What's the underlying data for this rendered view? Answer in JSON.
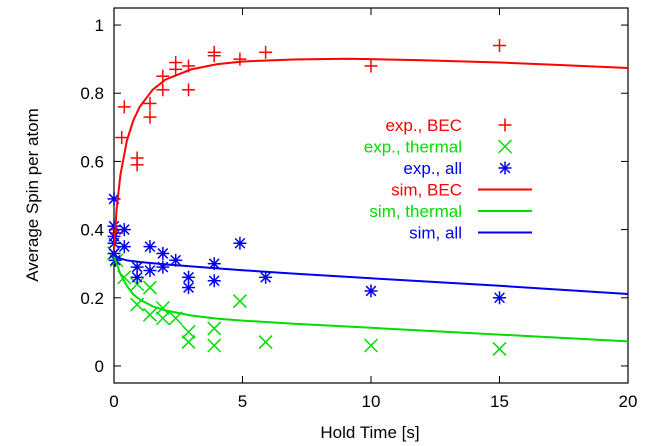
{
  "chart_data": {
    "type": "scatter",
    "xlabel": "Hold Time [s]",
    "ylabel": "Average Spin per atom",
    "xlim": [
      0,
      20
    ],
    "ylim": [
      -0.05,
      1.05
    ],
    "x_ticks": [
      0,
      5,
      10,
      15,
      20
    ],
    "y_ticks": [
      0,
      0.2,
      0.4,
      0.6,
      0.8,
      1
    ],
    "x_tick_labels": [
      "0",
      "5",
      "10",
      "15",
      "20"
    ],
    "y_tick_labels": [
      "0",
      "0.2",
      "0.4",
      "0.6",
      "0.8",
      "1"
    ],
    "legend_position": "center-right",
    "grid": false,
    "series": [
      {
        "name": "exp., BEC",
        "kind": "points",
        "marker": "plus",
        "color": "#ff0000",
        "points": [
          [
            0,
            0.36
          ],
          [
            0.05,
            0.4
          ],
          [
            0.1,
            0.39
          ],
          [
            0.3,
            0.67
          ],
          [
            0.4,
            0.76
          ],
          [
            0.9,
            0.59
          ],
          [
            0.9,
            0.61
          ],
          [
            1.4,
            0.73
          ],
          [
            1.4,
            0.77
          ],
          [
            1.9,
            0.81
          ],
          [
            1.9,
            0.85
          ],
          [
            2.4,
            0.87
          ],
          [
            2.4,
            0.89
          ],
          [
            2.9,
            0.81
          ],
          [
            2.9,
            0.88
          ],
          [
            3.9,
            0.91
          ],
          [
            3.9,
            0.92
          ],
          [
            4.9,
            0.9
          ],
          [
            5.9,
            0.92
          ],
          [
            10,
            0.88
          ],
          [
            15,
            0.94
          ]
        ]
      },
      {
        "name": "exp., thermal",
        "kind": "points",
        "marker": "x",
        "color": "#00dd00",
        "points": [
          [
            0,
            0.33
          ],
          [
            0.1,
            0.31
          ],
          [
            0.4,
            0.26
          ],
          [
            0.9,
            0.18
          ],
          [
            0.9,
            0.24
          ],
          [
            1.4,
            0.15
          ],
          [
            1.4,
            0.23
          ],
          [
            1.9,
            0.14
          ],
          [
            1.9,
            0.17
          ],
          [
            2.4,
            0.14
          ],
          [
            2.9,
            0.07
          ],
          [
            2.9,
            0.1
          ],
          [
            3.9,
            0.06
          ],
          [
            3.9,
            0.11
          ],
          [
            4.9,
            0.19
          ],
          [
            5.9,
            0.07
          ],
          [
            10,
            0.06
          ],
          [
            15,
            0.05
          ]
        ]
      },
      {
        "name": "exp., all",
        "kind": "points",
        "marker": "star",
        "color": "#0000ee",
        "points": [
          [
            0,
            0.49
          ],
          [
            0,
            0.41
          ],
          [
            0,
            0.38
          ],
          [
            0,
            0.36
          ],
          [
            0,
            0.33
          ],
          [
            0.05,
            0.31
          ],
          [
            0.4,
            0.35
          ],
          [
            0.4,
            0.4
          ],
          [
            0.9,
            0.26
          ],
          [
            0.9,
            0.29
          ],
          [
            1.4,
            0.28
          ],
          [
            1.4,
            0.35
          ],
          [
            1.9,
            0.29
          ],
          [
            1.9,
            0.33
          ],
          [
            2.4,
            0.31
          ],
          [
            2.9,
            0.23
          ],
          [
            2.9,
            0.26
          ],
          [
            3.9,
            0.25
          ],
          [
            3.9,
            0.3
          ],
          [
            4.9,
            0.36
          ],
          [
            5.9,
            0.26
          ],
          [
            10,
            0.22
          ],
          [
            15,
            0.2
          ]
        ]
      },
      {
        "name": "sim, BEC",
        "kind": "line",
        "color": "#ff0000",
        "points": [
          [
            0,
            0.34
          ],
          [
            0.1,
            0.46
          ],
          [
            0.25,
            0.56
          ],
          [
            0.5,
            0.66
          ],
          [
            0.75,
            0.72
          ],
          [
            1,
            0.76
          ],
          [
            1.5,
            0.81
          ],
          [
            2,
            0.84
          ],
          [
            3,
            0.87
          ],
          [
            4,
            0.885
          ],
          [
            5,
            0.893
          ],
          [
            7,
            0.899
          ],
          [
            9,
            0.901
          ],
          [
            10,
            0.9
          ],
          [
            12,
            0.897
          ],
          [
            15,
            0.89
          ],
          [
            17,
            0.884
          ],
          [
            20,
            0.874
          ]
        ]
      },
      {
        "name": "sim, thermal",
        "kind": "line",
        "color": "#00dd00",
        "points": [
          [
            0,
            0.32
          ],
          [
            0.1,
            0.3
          ],
          [
            0.25,
            0.27
          ],
          [
            0.5,
            0.235
          ],
          [
            0.75,
            0.21
          ],
          [
            1,
            0.195
          ],
          [
            1.5,
            0.175
          ],
          [
            2,
            0.163
          ],
          [
            3,
            0.148
          ],
          [
            4,
            0.139
          ],
          [
            5,
            0.133
          ],
          [
            7,
            0.124
          ],
          [
            10,
            0.112
          ],
          [
            15,
            0.092
          ],
          [
            20,
            0.072
          ]
        ]
      },
      {
        "name": "sim, all",
        "kind": "line",
        "color": "#0000ee",
        "points": [
          [
            0,
            0.33
          ],
          [
            0.1,
            0.32
          ],
          [
            0.25,
            0.315
          ],
          [
            0.5,
            0.31
          ],
          [
            1,
            0.305
          ],
          [
            2,
            0.298
          ],
          [
            3,
            0.292
          ],
          [
            5,
            0.281
          ],
          [
            7,
            0.271
          ],
          [
            10,
            0.257
          ],
          [
            15,
            0.235
          ],
          [
            20,
            0.211
          ]
        ]
      }
    ]
  }
}
